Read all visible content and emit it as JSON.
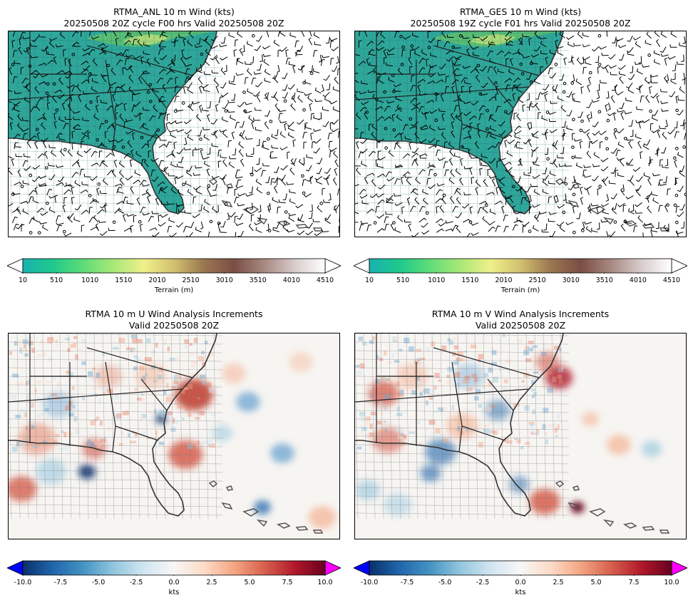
{
  "panels": [
    {
      "title_line1": "RTMA_ANL 10 m Wind (kts)",
      "title_line2": "20250508 20Z cycle F00 hrs Valid 20250508 20Z"
    },
    {
      "title_line1": "RTMA_GES 10 m Wind (kts)",
      "title_line2": "20250508 19Z cycle F01 hrs Valid 20250508 20Z"
    },
    {
      "title_line1": "RTMA 10 m U Wind Analysis Increments",
      "title_line2": "Valid 20250508 20Z"
    },
    {
      "title_line1": "RTMA 10 m V Wind Analysis Increments",
      "title_line2": "Valid 20250508 20Z"
    }
  ],
  "terrain_colorbar": {
    "label": "Terrain (m)",
    "ticks": [
      "10",
      "510",
      "1010",
      "1510",
      "2010",
      "2510",
      "3010",
      "3510",
      "4010",
      "4510"
    ],
    "colors": [
      "#19b2b0",
      "#1fc98c",
      "#5fdc78",
      "#a8e878",
      "#eef08a",
      "#d2c070",
      "#9a7650",
      "#7a4e44",
      "#a88a82",
      "#d8cccc",
      "#ffffff"
    ]
  },
  "increment_colorbar": {
    "label": "kts",
    "ticks": [
      "-10.0",
      "-7.5",
      "-5.0",
      "-2.5",
      "0.0",
      "2.5",
      "5.0",
      "7.5",
      "10.0"
    ],
    "colors": [
      "#08306b",
      "#2166ac",
      "#4393c3",
      "#92c5de",
      "#d1e5f0",
      "#f7f7f7",
      "#fddbc7",
      "#f4a582",
      "#d6604d",
      "#b2182b",
      "#67001f"
    ],
    "under_color": "#0000ff",
    "over_color": "#ff00ff"
  }
}
